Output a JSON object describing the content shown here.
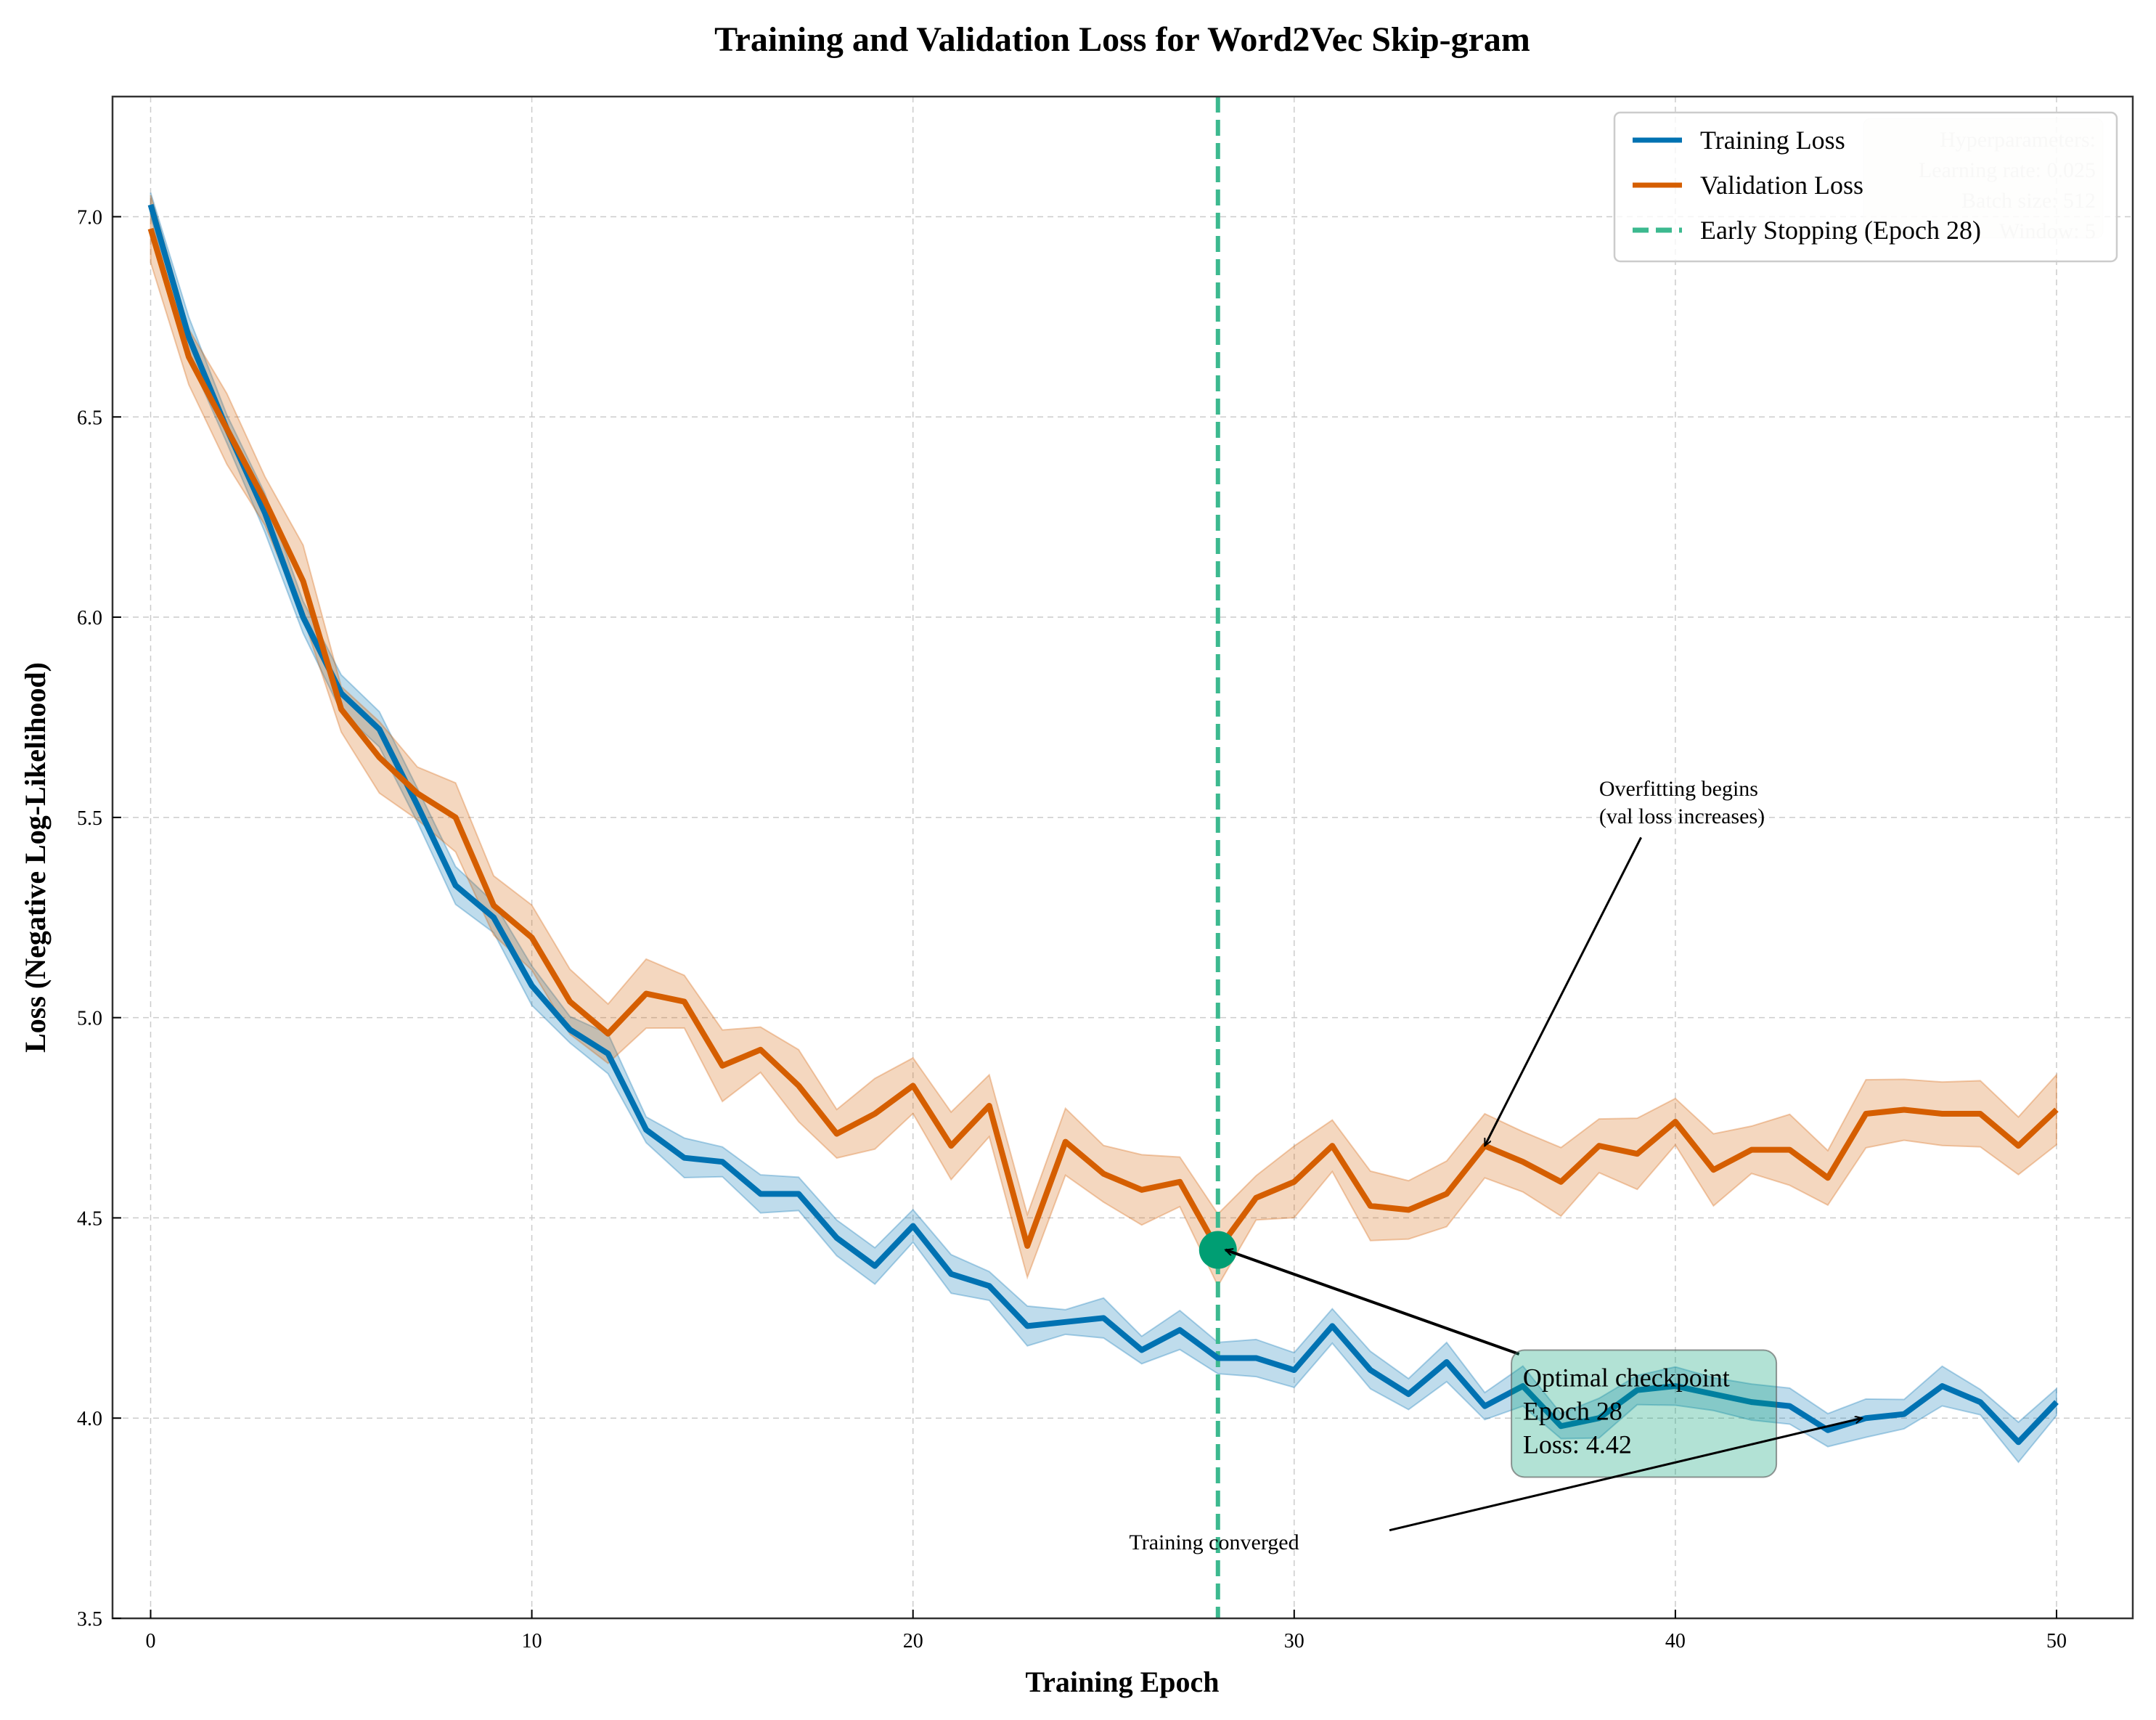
{
  "chart_data": {
    "type": "line",
    "title": "Training and Validation Loss for Word2Vec Skip-gram",
    "xlabel": "Training Epoch",
    "ylabel": "Loss (Negative Log-Likelihood)",
    "xlim": [
      -1,
      52
    ],
    "ylim": [
      3.5,
      7.3
    ],
    "xticks": [
      0,
      10,
      20,
      30,
      40,
      50
    ],
    "yticks": [
      3.5,
      4.0,
      4.5,
      5.0,
      5.5,
      6.0,
      6.5,
      7.0
    ],
    "grid": true,
    "legend_position": "top-right",
    "x": [
      0,
      1,
      2,
      3,
      4,
      5,
      6,
      7,
      8,
      9,
      10,
      11,
      12,
      13,
      14,
      15,
      16,
      17,
      18,
      19,
      20,
      21,
      22,
      23,
      24,
      25,
      26,
      27,
      28,
      29,
      30,
      31,
      32,
      33,
      34,
      35,
      36,
      37,
      38,
      39,
      40,
      41,
      42,
      43,
      44,
      45,
      46,
      47,
      48,
      49,
      50
    ],
    "series": [
      {
        "name": "Training Loss",
        "color": "#0072B2",
        "band": 0.05,
        "values": [
          7.03,
          6.7,
          6.47,
          6.26,
          6.0,
          5.81,
          5.72,
          5.53,
          5.33,
          5.25,
          5.08,
          4.97,
          4.91,
          4.72,
          4.65,
          4.64,
          4.56,
          4.56,
          4.45,
          4.38,
          4.48,
          4.36,
          4.33,
          4.23,
          4.24,
          4.25,
          4.17,
          4.22,
          4.15,
          4.15,
          4.12,
          4.23,
          4.12,
          4.06,
          4.14,
          4.03,
          4.08,
          3.98,
          4.0,
          4.07,
          4.08,
          4.06,
          4.04,
          4.03,
          3.97,
          4.0,
          4.01,
          4.08,
          4.04,
          3.94,
          4.04
        ]
      },
      {
        "name": "Validation Loss",
        "color": "#D55E00",
        "band": 0.09,
        "values": [
          6.97,
          6.65,
          6.47,
          6.29,
          6.09,
          5.77,
          5.65,
          5.56,
          5.5,
          5.28,
          5.2,
          5.04,
          4.96,
          5.06,
          5.04,
          4.88,
          4.92,
          4.83,
          4.71,
          4.76,
          4.83,
          4.68,
          4.78,
          4.43,
          4.69,
          4.61,
          4.57,
          4.59,
          4.42,
          4.55,
          4.59,
          4.68,
          4.53,
          4.52,
          4.56,
          4.68,
          4.64,
          4.59,
          4.68,
          4.66,
          4.74,
          4.62,
          4.67,
          4.67,
          4.6,
          4.76,
          4.77,
          4.76,
          4.76,
          4.68,
          4.77
        ]
      }
    ],
    "vline": {
      "x": 28,
      "label": "Early Stopping (Epoch 28)",
      "color": "#3CB98F"
    },
    "marker": {
      "x": 28,
      "y": 4.42,
      "color": "#009E73"
    },
    "annotations": {
      "overfit": {
        "lines": [
          "Overfitting begins",
          "(val loss increases)"
        ],
        "text_at": [
          38,
          5.5
        ],
        "arrow_to": [
          35,
          4.68
        ]
      },
      "optimal": {
        "lines": [
          "Optimal checkpoint",
          "Epoch 28",
          "Loss: 4.42"
        ],
        "text_at": [
          36,
          3.92
        ],
        "arrow_to": [
          28.2,
          4.42
        ]
      },
      "converged": {
        "lines": [
          "Training converged"
        ],
        "text_at": [
          27.9,
          3.69
        ],
        "arrow_to": [
          44.9,
          4.0
        ]
      }
    },
    "hyperparameters": [
      "Hyperparameters:",
      "Learning rate: 0.025",
      "Batch size: 512",
      "Window: 5"
    ]
  }
}
